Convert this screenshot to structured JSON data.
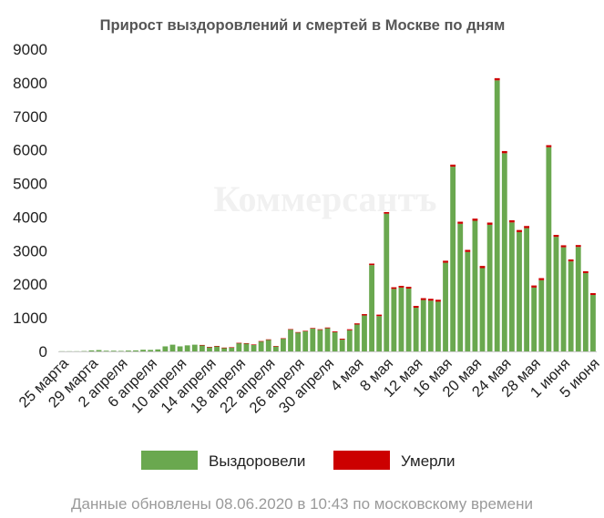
{
  "chart_data": {
    "type": "bar",
    "title": "Прирост выздоровлений и смертей в Москве по дням",
    "watermark": "Коммерсантъ",
    "ylim": [
      0,
      9000
    ],
    "yticks": [
      "0",
      "1000",
      "2000",
      "3000",
      "4000",
      "5000",
      "6000",
      "7000",
      "8000",
      "9000"
    ],
    "xtick_labels": [
      "25 марта",
      "29 марта",
      "2 апреля",
      "6 апреля",
      "10 апреля",
      "14 апреля",
      "18 апреля",
      "22 апреля",
      "26 апреля",
      "30 апреля",
      "4 мая",
      "8 мая",
      "12 мая",
      "16 мая",
      "20 мая",
      "24 мая",
      "28 мая",
      "1 июня",
      "5 июня"
    ],
    "xtick_every": 4,
    "grid": false,
    "legend_position": "bottom",
    "stacked": true,
    "series": [
      {
        "name": "Выздоровели",
        "color": "#6aa84f",
        "values": [
          5,
          5,
          5,
          10,
          30,
          40,
          20,
          20,
          15,
          25,
          30,
          50,
          45,
          60,
          150,
          200,
          150,
          180,
          200,
          190,
          130,
          160,
          110,
          120,
          250,
          240,
          200,
          300,
          350,
          150,
          380,
          650,
          560,
          600,
          680,
          640,
          690,
          570,
          350,
          630,
          800,
          1070,
          2570,
          1050,
          4100,
          1860,
          1900,
          1870,
          1300,
          1530,
          1510,
          1480,
          2640,
          5500,
          3800,
          2960,
          3890,
          2480,
          3770,
          8070,
          5900,
          3840,
          3550,
          3670,
          1900,
          2120,
          6080,
          3410,
          3100,
          2680,
          3110,
          2330,
          1680
        ]
      },
      {
        "name": "Умерли",
        "color": "#cc0000",
        "values": [
          0,
          0,
          0,
          0,
          0,
          0,
          0,
          0,
          0,
          0,
          0,
          0,
          0,
          0,
          0,
          0,
          0,
          0,
          0,
          2,
          2,
          3,
          3,
          4,
          5,
          6,
          7,
          8,
          9,
          10,
          12,
          14,
          15,
          16,
          18,
          20,
          22,
          25,
          28,
          30,
          35,
          40,
          45,
          45,
          48,
          50,
          52,
          55,
          55,
          55,
          57,
          58,
          60,
          62,
          62,
          63,
          64,
          65,
          66,
          66,
          66,
          65,
          65,
          64,
          63,
          62,
          61,
          60,
          60,
          58,
          57,
          56,
          55
        ]
      }
    ]
  },
  "footer": "Данные обновлены 08.06.2020 в 10:43 по московскому времени"
}
